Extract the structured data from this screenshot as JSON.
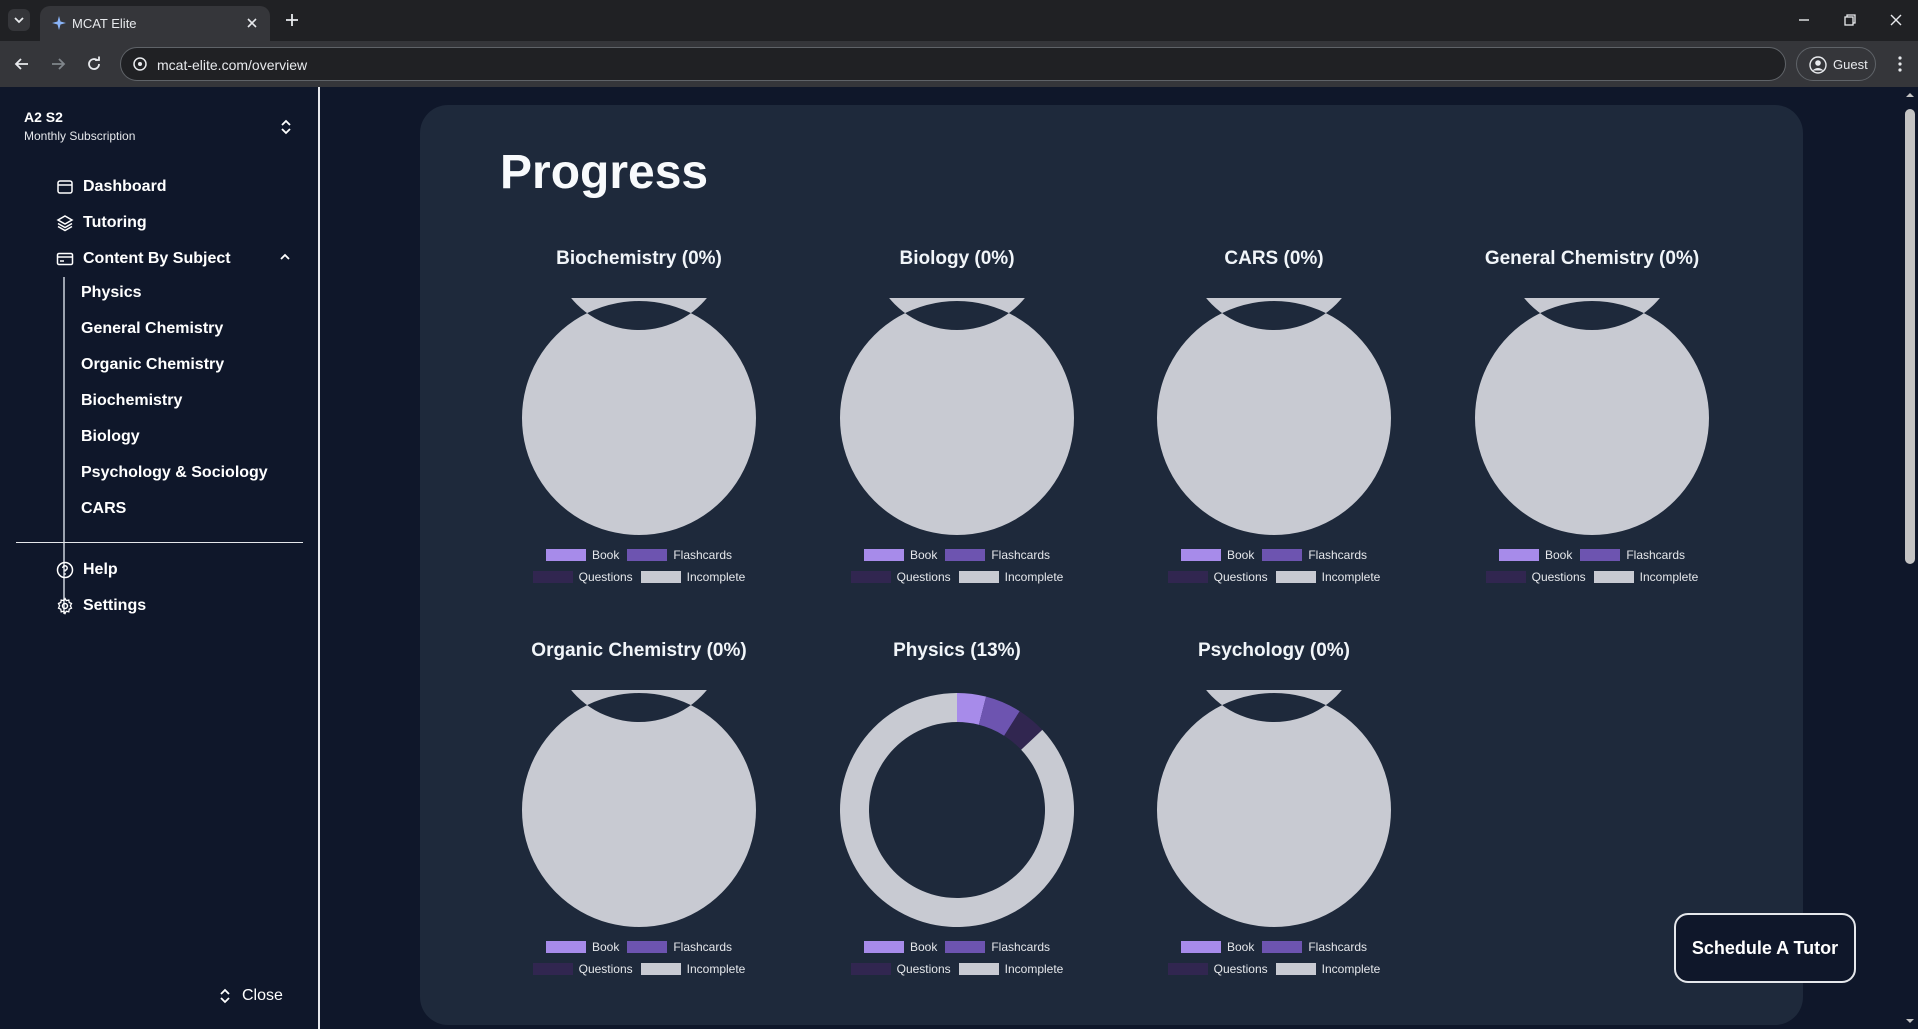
{
  "browser": {
    "tab_title": "MCAT Elite",
    "url": "mcat-elite.com/overview",
    "profile_label": "Guest"
  },
  "sidebar": {
    "account_name": "A2 S2",
    "account_plan": "Monthly Subscription",
    "items": [
      {
        "label": "Dashboard",
        "icon": "box-icon"
      },
      {
        "label": "Tutoring",
        "icon": "layers-icon"
      },
      {
        "label": "Content By Subject",
        "icon": "card-icon"
      }
    ],
    "subjects": [
      "Physics",
      "General Chemistry",
      "Organic Chemistry",
      "Biochemistry",
      "Biology",
      "Psychology & Sociology",
      "CARS"
    ],
    "footer_items": [
      {
        "label": "Help",
        "icon": "help-icon"
      },
      {
        "label": "Settings",
        "icon": "gear-icon"
      }
    ],
    "close_label": "Close"
  },
  "main": {
    "title": "Progress",
    "schedule_button": "Schedule A Tutor"
  },
  "colors": {
    "book": "#a78bea",
    "flashcards": "#6d54b0",
    "questions": "#312650",
    "incomplete": "#c8cad2"
  },
  "chart_data": [
    {
      "type": "pie",
      "title": "Biochemistry (0%)",
      "labels": [
        "Book",
        "Flashcards",
        "Questions",
        "Incomplete"
      ],
      "values": [
        0,
        0,
        0,
        100
      ]
    },
    {
      "type": "pie",
      "title": "Biology (0%)",
      "labels": [
        "Book",
        "Flashcards",
        "Questions",
        "Incomplete"
      ],
      "values": [
        0,
        0,
        0,
        100
      ]
    },
    {
      "type": "pie",
      "title": "CARS (0%)",
      "labels": [
        "Book",
        "Flashcards",
        "Questions",
        "Incomplete"
      ],
      "values": [
        0,
        0,
        0,
        100
      ]
    },
    {
      "type": "pie",
      "title": "General Chemistry (0%)",
      "labels": [
        "Book",
        "Flashcards",
        "Questions",
        "Incomplete"
      ],
      "values": [
        0,
        0,
        0,
        100
      ]
    },
    {
      "type": "pie",
      "title": "Organic Chemistry (0%)",
      "labels": [
        "Book",
        "Flashcards",
        "Questions",
        "Incomplete"
      ],
      "values": [
        0,
        0,
        0,
        100
      ]
    },
    {
      "type": "pie",
      "title": "Physics (13%)",
      "labels": [
        "Book",
        "Flashcards",
        "Questions",
        "Incomplete"
      ],
      "values": [
        4,
        5,
        4,
        87
      ]
    },
    {
      "type": "pie",
      "title": "Psychology (0%)",
      "labels": [
        "Book",
        "Flashcards",
        "Questions",
        "Incomplete"
      ],
      "values": [
        0,
        0,
        0,
        100
      ]
    }
  ]
}
